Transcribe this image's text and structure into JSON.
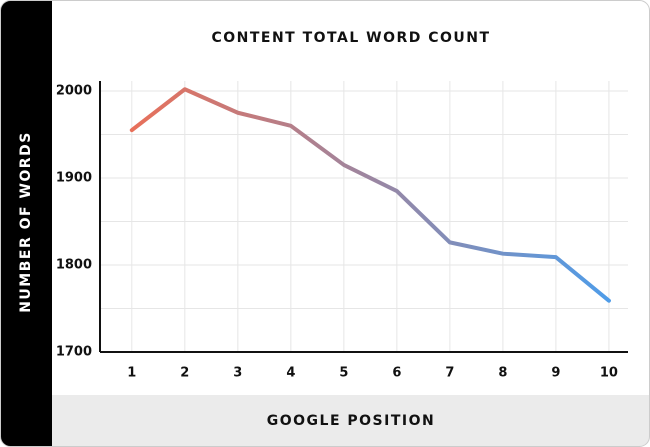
{
  "chart_data": {
    "type": "line",
    "title": "CONTENT TOTAL WORD COUNT",
    "x_label": "GOOGLE POSITION",
    "y_label": "NUMBER OF WORDS",
    "x": [
      1,
      2,
      3,
      4,
      5,
      6,
      7,
      8,
      9,
      10
    ],
    "series": [
      {
        "color": [
          "#e8705a",
          "#4f9ce8"
        ],
        "values": [
          1955,
          2002,
          1975,
          1960,
          1915,
          1885,
          1826,
          1813,
          1809,
          1759
        ]
      }
    ],
    "xlim": [
      0.4,
      10.36
    ],
    "xticks": [
      1,
      2,
      3,
      4,
      5,
      6,
      7,
      8,
      9,
      10
    ],
    "ylim": [
      1700,
      2000
    ],
    "yticks": [
      1700,
      1800,
      1900,
      2000
    ],
    "grid": true
  }
}
